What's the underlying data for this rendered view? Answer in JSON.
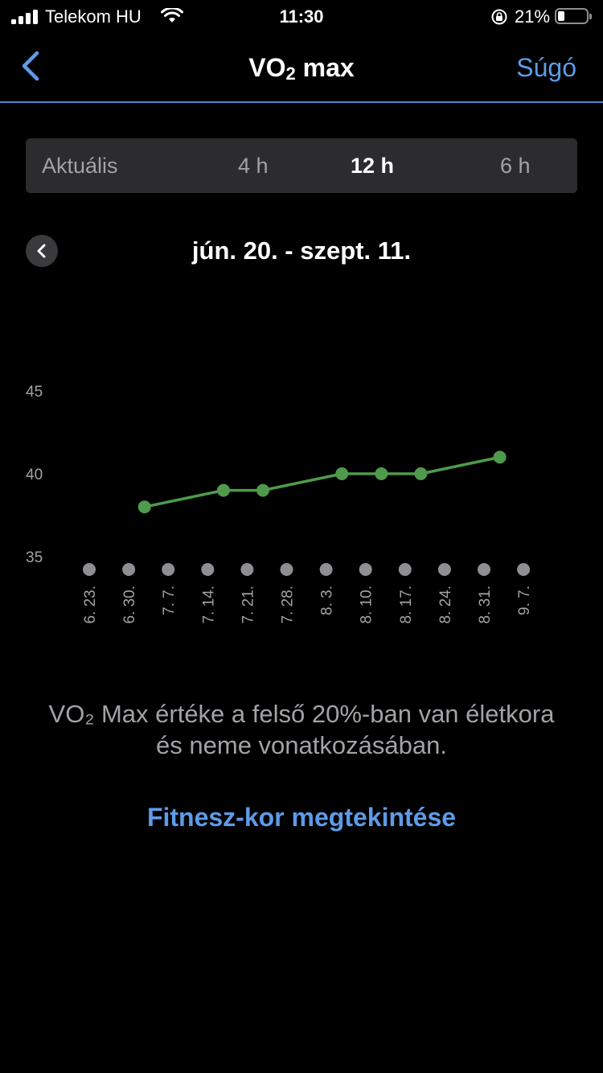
{
  "status_bar": {
    "carrier": "Telekom HU",
    "time": "11:30",
    "battery_percent": "21%",
    "battery_level": 0.21,
    "icons": [
      "signal-icon",
      "wifi-icon",
      "rotation-lock-icon",
      "battery-icon"
    ]
  },
  "nav": {
    "title_main": "VO",
    "title_sub": "2",
    "title_rest": " max",
    "help_label": "Súgó",
    "back_icon": "chevron-left-icon"
  },
  "segments": [
    {
      "label": "Aktuális",
      "selected": false
    },
    {
      "label": "4 h",
      "selected": false
    },
    {
      "label": "12 h",
      "selected": true
    },
    {
      "label": "6 h",
      "selected": false
    }
  ],
  "date_range": "jún. 20. - szept. 11.",
  "chart_data": {
    "type": "line",
    "x": [
      "6. 23.",
      "6. 30.",
      "7. 7.",
      "7. 14.",
      "7. 21.",
      "7. 28.",
      "8. 3.",
      "8. 10.",
      "8. 17.",
      "8. 24.",
      "8. 31.",
      "9. 7."
    ],
    "y_ticks": [
      45,
      40,
      35
    ],
    "ylim": [
      35,
      45
    ],
    "series": [
      {
        "color": "#4f9a4c",
        "points": [
          {
            "x_index": 1.4,
            "y": 38
          },
          {
            "x_index": 3.4,
            "y": 39
          },
          {
            "x_index": 4.4,
            "y": 39
          },
          {
            "x_index": 6.4,
            "y": 40
          },
          {
            "x_index": 7.4,
            "y": 40
          },
          {
            "x_index": 8.4,
            "y": 40
          },
          {
            "x_index": 10.4,
            "y": 41
          }
        ]
      }
    ],
    "marker_dot_color": "#8e8e93"
  },
  "description": "VO₂ Max értéke a felső 20%-ban van életkora és neme vonatkozásában.",
  "fitness_link": "Fitnesz-kor megtekintése",
  "colors": {
    "accent": "#5e9be8",
    "background": "#000000",
    "segment_bg": "#2c2c2e",
    "line": "#4f9a4c"
  }
}
